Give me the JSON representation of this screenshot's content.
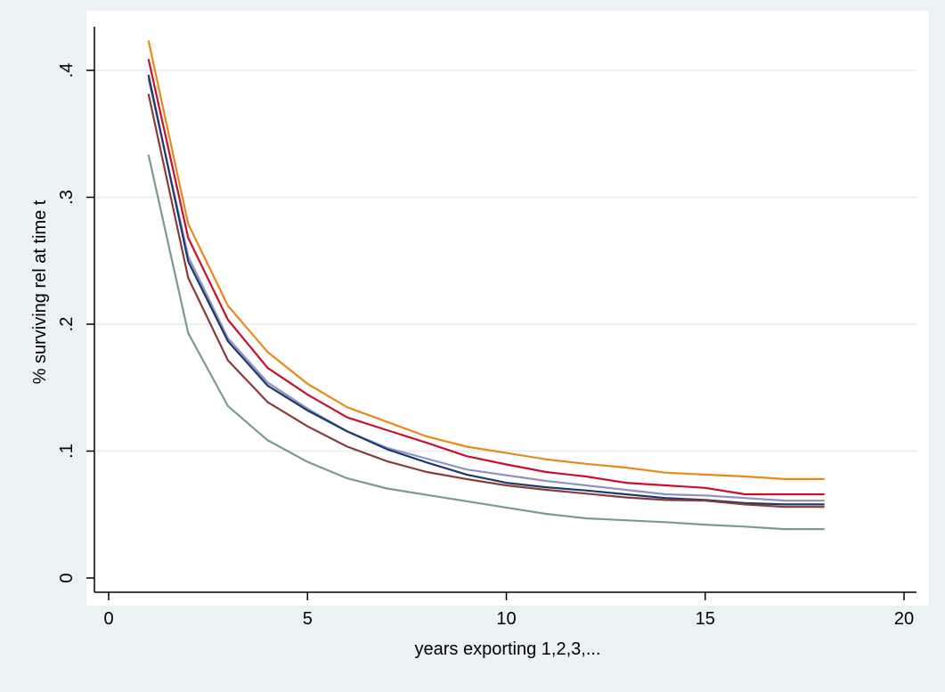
{
  "chart_data": {
    "type": "line",
    "title": "",
    "xlabel": "years exporting 1,2,3,...",
    "ylabel": "% surviving rel at time t",
    "xlim": [
      0,
      20
    ],
    "ylim": [
      0,
      0.4
    ],
    "x_ticks": [
      0,
      5,
      10,
      15,
      20
    ],
    "x_tick_labels": [
      "0",
      "5",
      "10",
      "15",
      "20"
    ],
    "y_ticks": [
      0,
      0.1,
      0.2,
      0.3,
      0.4
    ],
    "y_tick_labels": [
      "0",
      ".1",
      ".2",
      ".3",
      ".4"
    ],
    "grid": true,
    "legend": "none",
    "x": [
      1,
      2,
      3,
      4,
      5,
      6,
      7,
      8,
      9,
      10,
      11,
      12,
      13,
      14,
      15,
      16,
      17,
      18
    ],
    "series": [
      {
        "color": "#e8891a",
        "values": [
          0.4235,
          0.279,
          0.2145,
          0.178,
          0.153,
          0.1345,
          0.123,
          0.1115,
          0.1035,
          0.0985,
          0.0935,
          0.09,
          0.087,
          0.083,
          0.0815,
          0.08,
          0.078,
          0.078
        ]
      },
      {
        "color": "#c8102e",
        "values": [
          0.409,
          0.268,
          0.2035,
          0.1655,
          0.1445,
          0.1265,
          0.1165,
          0.1065,
          0.096,
          0.0895,
          0.0835,
          0.08,
          0.075,
          0.073,
          0.071,
          0.066,
          0.066,
          0.066
        ]
      },
      {
        "color": "#9090c8",
        "values": [
          0.3935,
          0.2535,
          0.189,
          0.154,
          0.1335,
          0.1155,
          0.1025,
          0.094,
          0.0855,
          0.081,
          0.0765,
          0.073,
          0.0695,
          0.066,
          0.065,
          0.063,
          0.061,
          0.061
        ]
      },
      {
        "color": "#1a3a6e",
        "values": [
          0.3965,
          0.2495,
          0.1865,
          0.1515,
          0.132,
          0.1155,
          0.1015,
          0.091,
          0.0815,
          0.075,
          0.0715,
          0.069,
          0.066,
          0.063,
          0.0615,
          0.059,
          0.058,
          0.058
        ]
      },
      {
        "color": "#8b3a3a",
        "values": [
          0.3815,
          0.2365,
          0.1715,
          0.1385,
          0.1195,
          0.1035,
          0.092,
          0.0835,
          0.078,
          0.073,
          0.0695,
          0.0665,
          0.0635,
          0.0615,
          0.061,
          0.058,
          0.056,
          0.056
        ]
      },
      {
        "color": "#7a9a8e",
        "values": [
          0.3335,
          0.193,
          0.1355,
          0.1085,
          0.0915,
          0.0785,
          0.0705,
          0.0655,
          0.0605,
          0.0555,
          0.0505,
          0.047,
          0.0455,
          0.044,
          0.042,
          0.0405,
          0.0385,
          0.0385
        ]
      }
    ]
  }
}
